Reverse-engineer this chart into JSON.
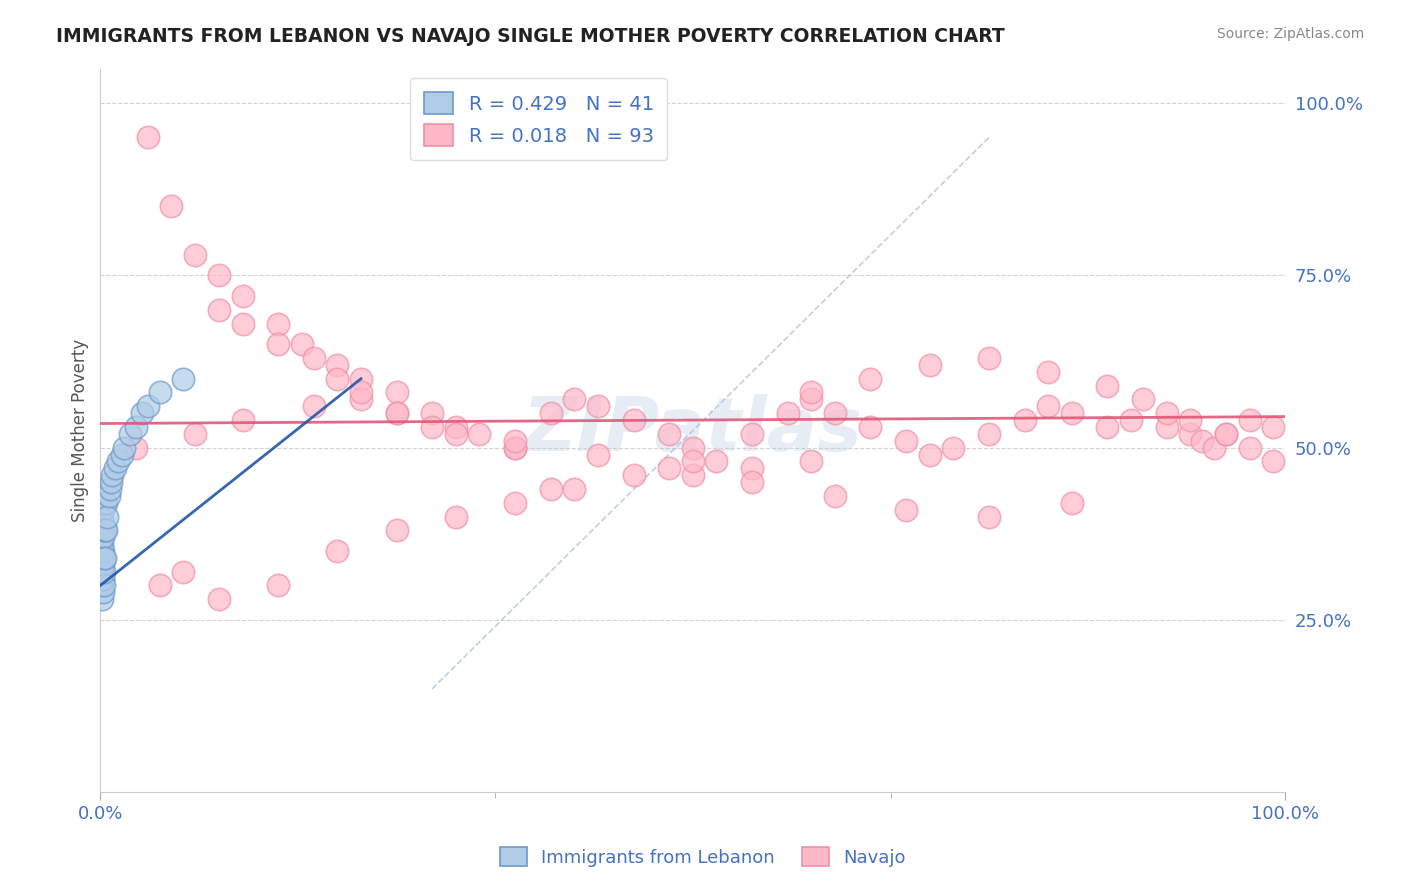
{
  "title": "IMMIGRANTS FROM LEBANON VS NAVAJO SINGLE MOTHER POVERTY CORRELATION CHART",
  "source": "Source: ZipAtlas.com",
  "ylabel": "Single Mother Poverty",
  "x_range": [
    0.0,
    1.0
  ],
  "y_range": [
    0.0,
    1.05
  ],
  "blue_R": "0.429",
  "blue_N": "41",
  "pink_R": "0.018",
  "pink_N": "93",
  "title_color": "#222222",
  "axis_color": "#4472c4",
  "watermark": "ZIPatlas",
  "blue_scatter_x": [
    0.001,
    0.001,
    0.001,
    0.001,
    0.001,
    0.001,
    0.001,
    0.001,
    0.001,
    0.001,
    0.002,
    0.002,
    0.002,
    0.002,
    0.002,
    0.002,
    0.002,
    0.003,
    0.003,
    0.003,
    0.003,
    0.004,
    0.004,
    0.004,
    0.005,
    0.005,
    0.006,
    0.007,
    0.008,
    0.009,
    0.01,
    0.012,
    0.015,
    0.018,
    0.02,
    0.025,
    0.03,
    0.035,
    0.04,
    0.05,
    0.07
  ],
  "blue_scatter_y": [
    0.28,
    0.3,
    0.31,
    0.32,
    0.33,
    0.34,
    0.35,
    0.36,
    0.37,
    0.38,
    0.29,
    0.31,
    0.33,
    0.35,
    0.37,
    0.39,
    0.41,
    0.3,
    0.32,
    0.34,
    0.38,
    0.34,
    0.38,
    0.42,
    0.38,
    0.42,
    0.4,
    0.43,
    0.44,
    0.45,
    0.46,
    0.47,
    0.48,
    0.49,
    0.5,
    0.52,
    0.53,
    0.55,
    0.56,
    0.58,
    0.6
  ],
  "pink_scatter_x": [
    0.04,
    0.06,
    0.08,
    0.1,
    0.12,
    0.15,
    0.17,
    0.2,
    0.22,
    0.25,
    0.28,
    0.3,
    0.32,
    0.35,
    0.38,
    0.4,
    0.42,
    0.45,
    0.48,
    0.5,
    0.52,
    0.55,
    0.58,
    0.6,
    0.62,
    0.65,
    0.68,
    0.7,
    0.72,
    0.75,
    0.78,
    0.8,
    0.82,
    0.85,
    0.87,
    0.9,
    0.92,
    0.93,
    0.94,
    0.95,
    0.97,
    0.99,
    0.1,
    0.12,
    0.15,
    0.18,
    0.2,
    0.22,
    0.25,
    0.3,
    0.35,
    0.6,
    0.65,
    0.7,
    0.75,
    0.8,
    0.85,
    0.88,
    0.9,
    0.92,
    0.95,
    0.97,
    0.99,
    0.5,
    0.55,
    0.6,
    0.4,
    0.45,
    0.5,
    0.3,
    0.35,
    0.38,
    0.2,
    0.25,
    0.15,
    0.1,
    0.07,
    0.05,
    0.03,
    0.08,
    0.12,
    0.18,
    0.22,
    0.25,
    0.28,
    0.35,
    0.42,
    0.48,
    0.55,
    0.62,
    0.68,
    0.75,
    0.82
  ],
  "pink_scatter_y": [
    0.95,
    0.85,
    0.78,
    0.75,
    0.72,
    0.68,
    0.65,
    0.62,
    0.6,
    0.58,
    0.55,
    0.53,
    0.52,
    0.5,
    0.55,
    0.57,
    0.56,
    0.54,
    0.52,
    0.5,
    0.48,
    0.52,
    0.55,
    0.57,
    0.55,
    0.53,
    0.51,
    0.49,
    0.5,
    0.52,
    0.54,
    0.56,
    0.55,
    0.53,
    0.54,
    0.53,
    0.52,
    0.51,
    0.5,
    0.52,
    0.54,
    0.53,
    0.7,
    0.68,
    0.65,
    0.63,
    0.6,
    0.57,
    0.55,
    0.52,
    0.5,
    0.58,
    0.6,
    0.62,
    0.63,
    0.61,
    0.59,
    0.57,
    0.55,
    0.54,
    0.52,
    0.5,
    0.48,
    0.46,
    0.47,
    0.48,
    0.44,
    0.46,
    0.48,
    0.4,
    0.42,
    0.44,
    0.35,
    0.38,
    0.3,
    0.28,
    0.32,
    0.3,
    0.5,
    0.52,
    0.54,
    0.56,
    0.58,
    0.55,
    0.53,
    0.51,
    0.49,
    0.47,
    0.45,
    0.43,
    0.41,
    0.4,
    0.42
  ],
  "blue_line_x": [
    0.0,
    0.22
  ],
  "blue_line_y": [
    0.3,
    0.6
  ],
  "pink_line_x": [
    0.0,
    1.0
  ],
  "pink_line_y": [
    0.535,
    0.545
  ],
  "diag_line_x": [
    0.28,
    0.75
  ],
  "diag_line_y": [
    0.15,
    0.95
  ]
}
